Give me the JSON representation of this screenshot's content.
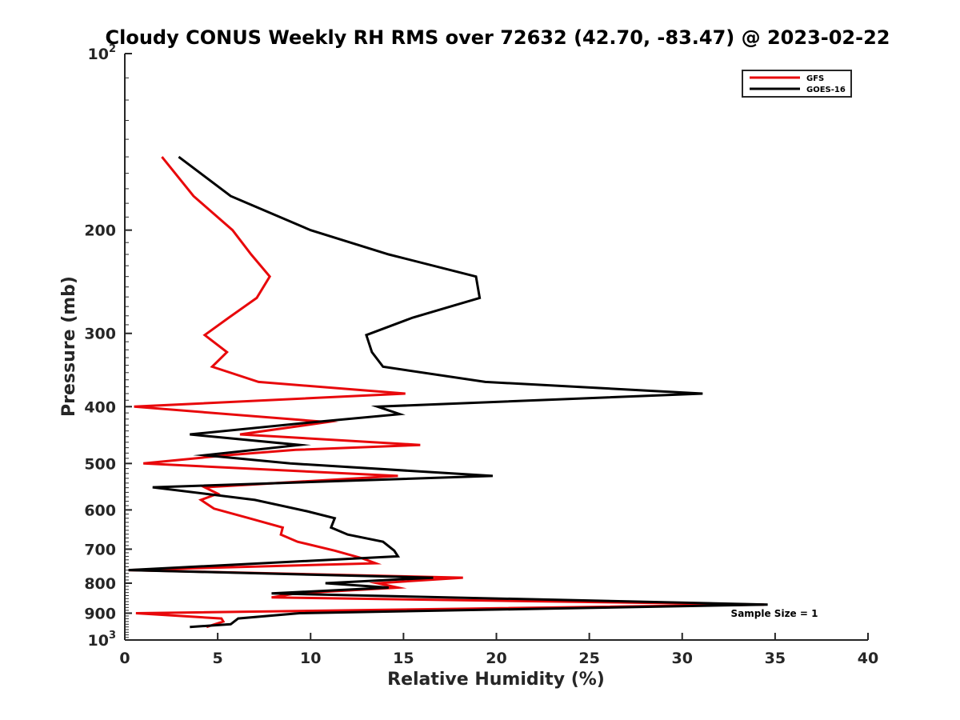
{
  "chart_data": {
    "type": "line",
    "title": "Cloudy CONUS Weekly RH RMS over 72632 (42.70, -83.47) @ 2023-02-22",
    "xlabel": "Relative Humidity (%)",
    "ylabel": "Pressure (mb)",
    "xlim": [
      0,
      40
    ],
    "ylim": [
      100,
      1000
    ],
    "y_scale": "log",
    "y_reversed": true,
    "x_ticks": [
      "0",
      "5",
      "10",
      "15",
      "20",
      "25",
      "30",
      "35",
      "40"
    ],
    "y_ticks": [
      {
        "value": 100,
        "base": "10",
        "exp": "2"
      },
      {
        "value": 200,
        "label": "200"
      },
      {
        "value": 300,
        "label": "300"
      },
      {
        "value": 400,
        "label": "400"
      },
      {
        "value": 500,
        "label": "500"
      },
      {
        "value": 600,
        "label": "600"
      },
      {
        "value": 700,
        "label": "700"
      },
      {
        "value": 800,
        "label": "800"
      },
      {
        "value": 900,
        "label": "900"
      },
      {
        "value": 1000,
        "base": "10",
        "exp": "3"
      }
    ],
    "grid": false,
    "legend_position": "top-right",
    "annotation": "Sample Size = 1",
    "series": [
      {
        "name": "GFS",
        "color": "#e8080b",
        "points": [
          [
            2.0,
            150
          ],
          [
            3.7,
            175
          ],
          [
            5.8,
            200
          ],
          [
            6.8,
            220
          ],
          [
            7.8,
            240
          ],
          [
            7.1,
            261
          ],
          [
            5.6,
            282
          ],
          [
            4.3,
            302
          ],
          [
            5.5,
            323
          ],
          [
            4.7,
            342
          ],
          [
            7.2,
            363
          ],
          [
            15.1,
            380
          ],
          [
            0.5,
            400
          ],
          [
            10.9,
            425
          ],
          [
            6.2,
            446
          ],
          [
            15.9,
            465
          ],
          [
            9.2,
            474
          ],
          [
            5.5,
            484
          ],
          [
            1.0,
            500
          ],
          [
            14.7,
            525
          ],
          [
            4.3,
            549
          ],
          [
            5.0,
            563
          ],
          [
            4.1,
            577
          ],
          [
            4.8,
            597
          ],
          [
            6.7,
            620
          ],
          [
            8.5,
            643
          ],
          [
            8.4,
            661
          ],
          [
            9.3,
            680
          ],
          [
            11.3,
            704
          ],
          [
            12.8,
            726
          ],
          [
            13.5,
            740
          ],
          [
            0.2,
            760
          ],
          [
            18.2,
            783
          ],
          [
            13.6,
            800
          ],
          [
            14.7,
            814
          ],
          [
            9.2,
            833
          ],
          [
            7.9,
            846
          ],
          [
            34.4,
            870
          ],
          [
            0.6,
            900
          ],
          [
            5.2,
            919
          ],
          [
            5.3,
            930
          ],
          [
            4.4,
            950
          ]
        ]
      },
      {
        "name": "GOES-16",
        "color": "#000000",
        "points": [
          [
            2.9,
            150
          ],
          [
            5.7,
            175
          ],
          [
            10.0,
            200
          ],
          [
            14.2,
            220
          ],
          [
            18.9,
            240
          ],
          [
            19.1,
            261
          ],
          [
            15.5,
            282
          ],
          [
            13.0,
            302
          ],
          [
            13.3,
            323
          ],
          [
            13.9,
            342
          ],
          [
            19.4,
            363
          ],
          [
            31.1,
            380
          ],
          [
            13.6,
            400
          ],
          [
            14.8,
            412
          ],
          [
            10.2,
            425
          ],
          [
            3.5,
            446
          ],
          [
            9.4,
            465
          ],
          [
            4.3,
            484
          ],
          [
            8.9,
            500
          ],
          [
            19.8,
            525
          ],
          [
            1.5,
            549
          ],
          [
            7.0,
            577
          ],
          [
            9.8,
            603
          ],
          [
            11.3,
            620
          ],
          [
            11.1,
            643
          ],
          [
            12.0,
            661
          ],
          [
            13.9,
            680
          ],
          [
            14.5,
            704
          ],
          [
            14.7,
            720
          ],
          [
            0.2,
            760
          ],
          [
            16.6,
            783
          ],
          [
            10.8,
            800
          ],
          [
            14.2,
            814
          ],
          [
            7.9,
            833
          ],
          [
            34.6,
            870
          ],
          [
            9.4,
            900
          ],
          [
            6.1,
            919
          ],
          [
            5.7,
            940
          ],
          [
            3.5,
            950
          ]
        ]
      }
    ]
  }
}
